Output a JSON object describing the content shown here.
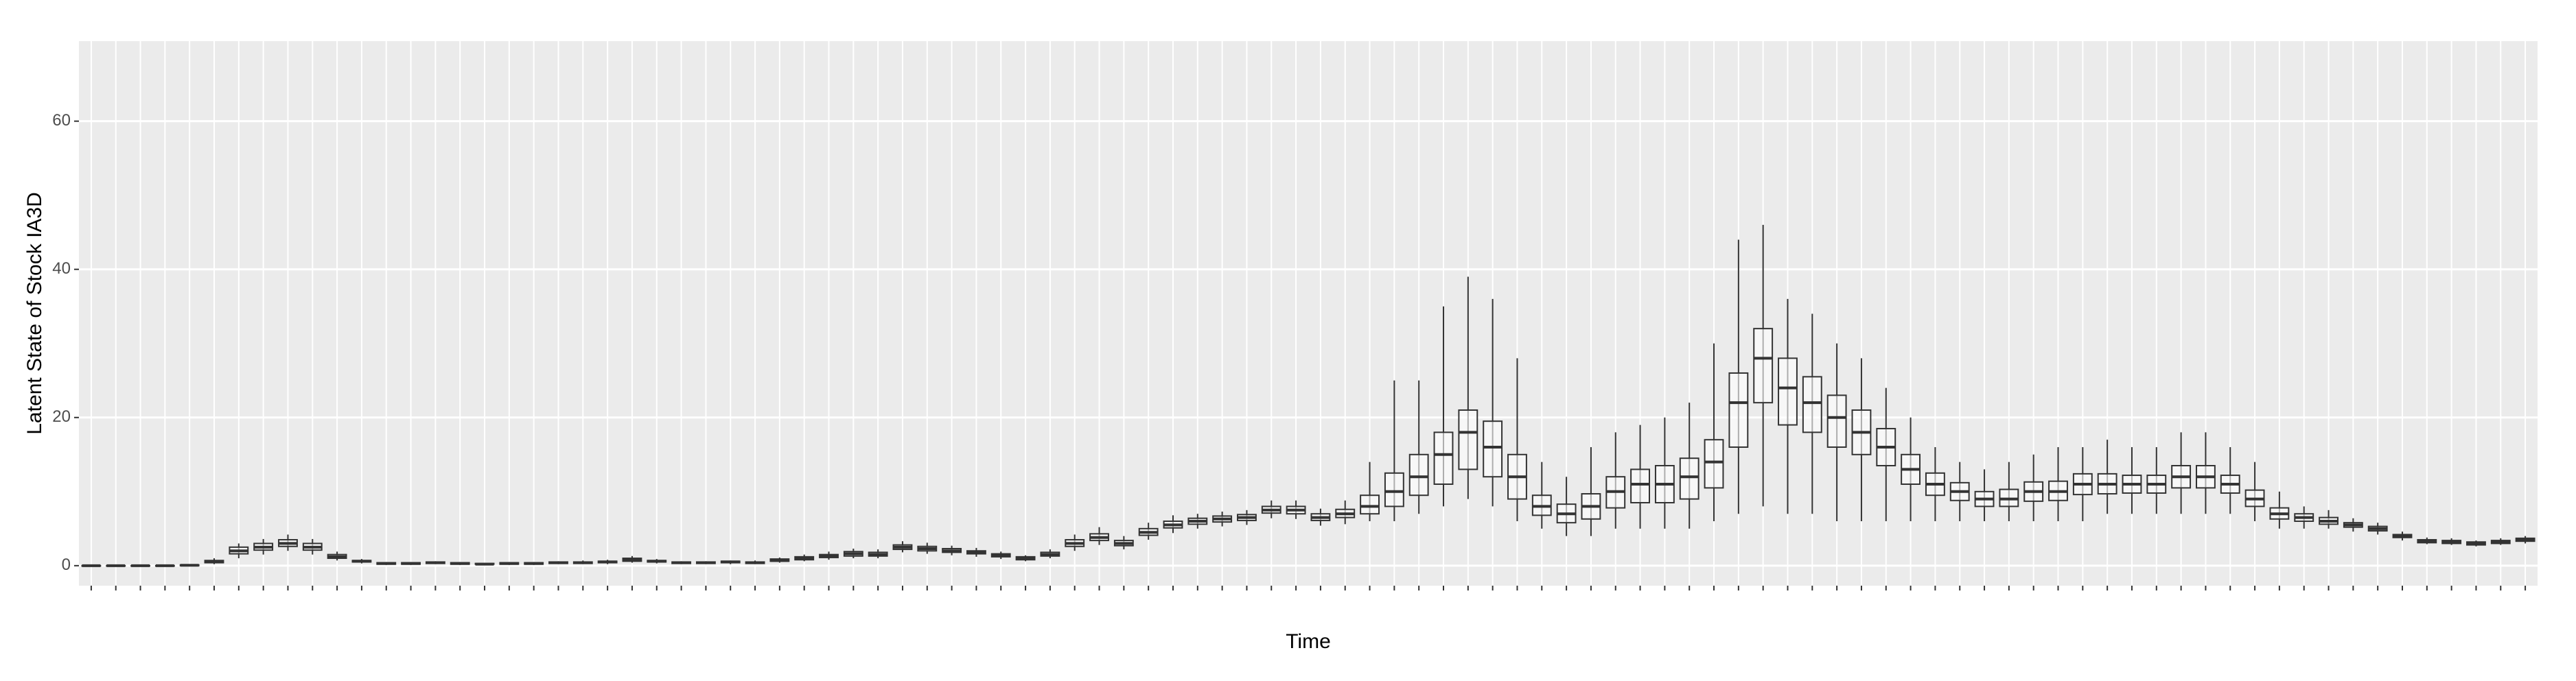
{
  "chart_data": {
    "type": "boxplot",
    "x_label": "Time",
    "y_label": "Latent State of Stock IA3D",
    "color": "#333333",
    "ylim": [
      -2.7,
      70.8
    ],
    "yticks": [
      0,
      20,
      40,
      60
    ],
    "grid": true,
    "boxes": [
      [
        0,
        0,
        0,
        0,
        0
      ],
      [
        0,
        0,
        0,
        0,
        0
      ],
      [
        0,
        0,
        0,
        0,
        0
      ],
      [
        0,
        0,
        0,
        0,
        0
      ],
      [
        0,
        0,
        0.05,
        0.1,
        0.2
      ],
      [
        0.2,
        0.4,
        0.5,
        0.7,
        1
      ],
      [
        1,
        1.6,
        2,
        2.5,
        3
      ],
      [
        1.5,
        2.1,
        2.5,
        3,
        3.6
      ],
      [
        2,
        2.6,
        3,
        3.5,
        4.2
      ],
      [
        1.5,
        2.1,
        2.5,
        3,
        3.6
      ],
      [
        0.7,
        1,
        1.2,
        1.5,
        1.9
      ],
      [
        0.3,
        0.5,
        0.6,
        0.7,
        0.9
      ],
      [
        0.1,
        0.2,
        0.3,
        0.4,
        0.5
      ],
      [
        0.1,
        0.2,
        0.3,
        0.4,
        0.5
      ],
      [
        0.2,
        0.3,
        0.4,
        0.5,
        0.6
      ],
      [
        0.1,
        0.2,
        0.3,
        0.4,
        0.5
      ],
      [
        0.1,
        0.2,
        0.2,
        0.3,
        0.4
      ],
      [
        0.1,
        0.2,
        0.3,
        0.4,
        0.5
      ],
      [
        0.1,
        0.2,
        0.3,
        0.4,
        0.5
      ],
      [
        0.2,
        0.3,
        0.4,
        0.5,
        0.6
      ],
      [
        0.2,
        0.3,
        0.4,
        0.5,
        0.7
      ],
      [
        0.2,
        0.4,
        0.5,
        0.6,
        0.8
      ],
      [
        0.4,
        0.6,
        0.8,
        1,
        1.3
      ],
      [
        0.3,
        0.5,
        0.6,
        0.7,
        0.9
      ],
      [
        0.2,
        0.3,
        0.4,
        0.5,
        0.6
      ],
      [
        0.2,
        0.3,
        0.4,
        0.5,
        0.6
      ],
      [
        0.2,
        0.4,
        0.5,
        0.6,
        0.7
      ],
      [
        0.2,
        0.3,
        0.4,
        0.5,
        0.7
      ],
      [
        0.4,
        0.6,
        0.7,
        0.9,
        1.1
      ],
      [
        0.6,
        0.8,
        1,
        1.2,
        1.5
      ],
      [
        0.8,
        1.1,
        1.3,
        1.5,
        1.9
      ],
      [
        1,
        1.3,
        1.6,
        1.9,
        2.3
      ],
      [
        1,
        1.3,
        1.5,
        1.8,
        2.2
      ],
      [
        1.8,
        2.2,
        2.5,
        2.8,
        3.3
      ],
      [
        1.6,
        2,
        2.3,
        2.6,
        3.1
      ],
      [
        1.4,
        1.8,
        2,
        2.3,
        2.7
      ],
      [
        1.2,
        1.6,
        1.8,
        2,
        2.4
      ],
      [
        0.9,
        1.2,
        1.4,
        1.6,
        1.9
      ],
      [
        0.6,
        0.8,
        1,
        1.2,
        1.4
      ],
      [
        1,
        1.3,
        1.5,
        1.8,
        2.2
      ],
      [
        2,
        2.6,
        3,
        3.5,
        4.2
      ],
      [
        2.8,
        3.4,
        3.8,
        4.3,
        5.2
      ],
      [
        2.2,
        2.7,
        3,
        3.4,
        4
      ],
      [
        3.5,
        4.1,
        4.5,
        5,
        5.8
      ],
      [
        4.4,
        5.1,
        5.5,
        6,
        6.8
      ],
      [
        5,
        5.6,
        6,
        6.4,
        7
      ],
      [
        5.3,
        5.9,
        6.3,
        6.7,
        7.3
      ],
      [
        5.5,
        6.1,
        6.5,
        6.9,
        7.5
      ],
      [
        6.4,
        7.1,
        7.5,
        8,
        8.8
      ],
      [
        6.3,
        7,
        7.5,
        8,
        8.8
      ],
      [
        5.4,
        6.1,
        6.5,
        7,
        7.7
      ],
      [
        5.6,
        6.5,
        7,
        7.6,
        8.8
      ],
      [
        6,
        7,
        8,
        9.5,
        14
      ],
      [
        6,
        8,
        10,
        12.5,
        25
      ],
      [
        7,
        9.5,
        12,
        15,
        25
      ],
      [
        8,
        11,
        15,
        18,
        35
      ],
      [
        9,
        13,
        18,
        21,
        39
      ],
      [
        8,
        12,
        16,
        19.5,
        36
      ],
      [
        6,
        9,
        12,
        15,
        28
      ],
      [
        5,
        6.8,
        8,
        9.5,
        14
      ],
      [
        4,
        5.8,
        7,
        8.3,
        12
      ],
      [
        4,
        6.3,
        8,
        9.7,
        16
      ],
      [
        5,
        7.8,
        10,
        12,
        18
      ],
      [
        5,
        8.5,
        11,
        13,
        19
      ],
      [
        5,
        8.5,
        11,
        13.5,
        20
      ],
      [
        5,
        9,
        12,
        14.5,
        22
      ],
      [
        6,
        10.5,
        14,
        17,
        30
      ],
      [
        7,
        16,
        22,
        26,
        44
      ],
      [
        8,
        22,
        28,
        32,
        46
      ],
      [
        7,
        19,
        24,
        28,
        36
      ],
      [
        7,
        18,
        22,
        25.5,
        34
      ],
      [
        6,
        16,
        20,
        23,
        30
      ],
      [
        6,
        15,
        18,
        21,
        28
      ],
      [
        6,
        13.5,
        16,
        18.5,
        24
      ],
      [
        6,
        11,
        13,
        15,
        20
      ],
      [
        6,
        9.5,
        11,
        12.5,
        16
      ],
      [
        6,
        8.8,
        10,
        11.2,
        14
      ],
      [
        6,
        8,
        9,
        10,
        13
      ],
      [
        6,
        8,
        9,
        10.3,
        14
      ],
      [
        6,
        8.7,
        10,
        11.3,
        15
      ],
      [
        6,
        8.8,
        10,
        11.4,
        16
      ],
      [
        6,
        9.6,
        11,
        12.4,
        16
      ],
      [
        7,
        9.7,
        11,
        12.4,
        17
      ],
      [
        7,
        9.8,
        11,
        12.2,
        16
      ],
      [
        7,
        9.8,
        11,
        12.2,
        16
      ],
      [
        7,
        10.5,
        12,
        13.5,
        18
      ],
      [
        7,
        10.5,
        12,
        13.5,
        18
      ],
      [
        7,
        9.8,
        11,
        12.2,
        16
      ],
      [
        6,
        8,
        9,
        10.2,
        14
      ],
      [
        5,
        6.3,
        7,
        7.8,
        10
      ],
      [
        5,
        6,
        6.5,
        7,
        8
      ],
      [
        5,
        5.6,
        6,
        6.5,
        7.5
      ],
      [
        4.6,
        5.2,
        5.5,
        5.8,
        6.4
      ],
      [
        4.2,
        4.7,
        5,
        5.3,
        5.8
      ],
      [
        3.4,
        3.8,
        4,
        4.2,
        4.6
      ],
      [
        2.9,
        3.1,
        3.3,
        3.5,
        3.8
      ],
      [
        2.8,
        3,
        3.2,
        3.4,
        3.7
      ],
      [
        2.6,
        2.8,
        3,
        3.2,
        3.4
      ],
      [
        2.8,
        3,
        3.2,
        3.4,
        3.7
      ],
      [
        3,
        3.3,
        3.5,
        3.7,
        4
      ]
    ]
  }
}
